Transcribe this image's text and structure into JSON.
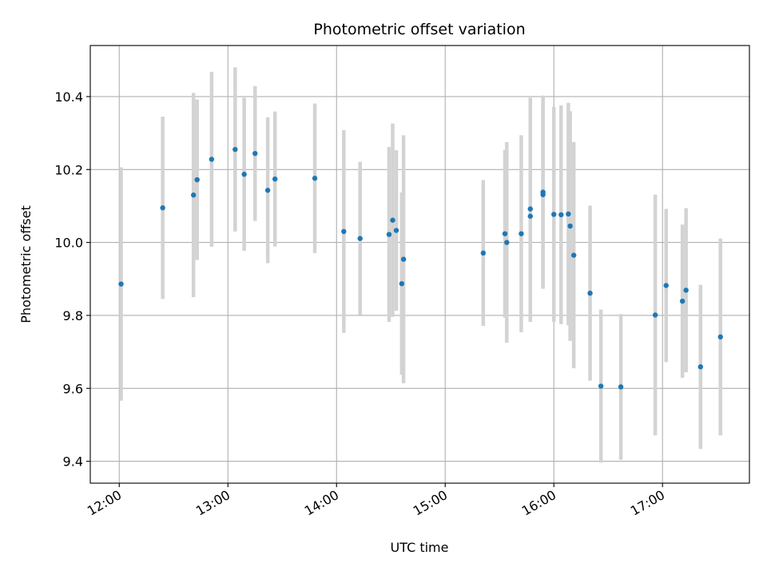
{
  "chart_data": {
    "type": "scatter",
    "title": "Photometric offset variation",
    "xlabel": "UTC time",
    "ylabel": "Photometric offset",
    "xlim": [
      "11:44",
      "17:48"
    ],
    "ylim": [
      9.34,
      10.54
    ],
    "x_ticks": [
      "12:00",
      "13:00",
      "14:00",
      "15:00",
      "16:00",
      "17:00"
    ],
    "y_ticks": [
      9.4,
      9.6,
      9.8,
      10.0,
      10.2,
      10.4
    ],
    "y_tick_labels": [
      "9.4",
      "9.6",
      "9.8",
      "10.0",
      "10.2",
      "10.4"
    ],
    "grid": true,
    "colors": {
      "points": "#1f77b4",
      "error_bars": "#d3d3d3",
      "grid": "#b0b0b0"
    },
    "points": [
      {
        "t": "12:01",
        "y": 9.886,
        "err": 0.32
      },
      {
        "t": "12:24",
        "y": 10.095,
        "err": 0.25
      },
      {
        "t": "12:41",
        "y": 10.13,
        "err": 0.28
      },
      {
        "t": "12:43",
        "y": 10.172,
        "err": 0.22
      },
      {
        "t": "12:51",
        "y": 10.228,
        "err": 0.24
      },
      {
        "t": "13:04",
        "y": 10.255,
        "err": 0.225
      },
      {
        "t": "13:09",
        "y": 10.187,
        "err": 0.21
      },
      {
        "t": "13:15",
        "y": 10.244,
        "err": 0.185
      },
      {
        "t": "13:22",
        "y": 10.143,
        "err": 0.2
      },
      {
        "t": "13:26",
        "y": 10.174,
        "err": 0.185
      },
      {
        "t": "13:48",
        "y": 10.176,
        "err": 0.205
      },
      {
        "t": "14:04",
        "y": 10.03,
        "err": 0.278
      },
      {
        "t": "14:13",
        "y": 10.011,
        "err": 0.21
      },
      {
        "t": "14:29",
        "y": 10.022,
        "err": 0.24
      },
      {
        "t": "14:31",
        "y": 10.061,
        "err": 0.265
      },
      {
        "t": "14:33",
        "y": 10.033,
        "err": 0.22
      },
      {
        "t": "14:36",
        "y": 9.887,
        "err": 0.25
      },
      {
        "t": "14:37",
        "y": 9.954,
        "err": 0.34
      },
      {
        "t": "15:21",
        "y": 9.971,
        "err": 0.2
      },
      {
        "t": "15:33",
        "y": 10.024,
        "err": 0.23
      },
      {
        "t": "15:34",
        "y": 10.0,
        "err": 0.275
      },
      {
        "t": "15:42",
        "y": 10.024,
        "err": 0.27
      },
      {
        "t": "15:47",
        "y": 10.092,
        "err": 0.305
      },
      {
        "t": "15:47",
        "y": 10.072,
        "err": 0.29
      },
      {
        "t": "15:54",
        "y": 10.138,
        "err": 0.265
      },
      {
        "t": "15:54",
        "y": 10.131,
        "err": 0.255
      },
      {
        "t": "16:00",
        "y": 10.077,
        "err": 0.295
      },
      {
        "t": "16:04",
        "y": 10.076,
        "err": 0.3
      },
      {
        "t": "16:08",
        "y": 10.078,
        "err": 0.305
      },
      {
        "t": "16:09",
        "y": 10.045,
        "err": 0.315
      },
      {
        "t": "16:11",
        "y": 9.965,
        "err": 0.31
      },
      {
        "t": "16:20",
        "y": 9.861,
        "err": 0.24
      },
      {
        "t": "16:26",
        "y": 9.606,
        "err": 0.21
      },
      {
        "t": "16:37",
        "y": 9.604,
        "err": 0.2
      },
      {
        "t": "16:56",
        "y": 9.801,
        "err": 0.33
      },
      {
        "t": "17:02",
        "y": 9.882,
        "err": 0.21
      },
      {
        "t": "17:11",
        "y": 9.839,
        "err": 0.21
      },
      {
        "t": "17:13",
        "y": 9.869,
        "err": 0.225
      },
      {
        "t": "17:21",
        "y": 9.659,
        "err": 0.225
      },
      {
        "t": "17:32",
        "y": 9.741,
        "err": 0.27
      }
    ]
  }
}
